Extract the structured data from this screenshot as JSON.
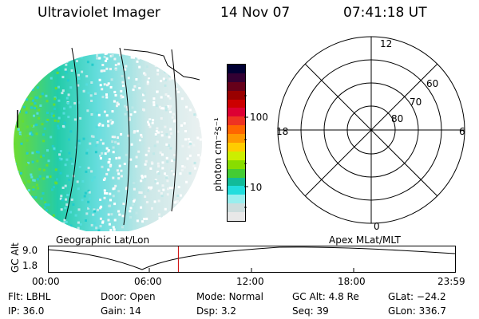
{
  "header": {
    "instrument": "Ultraviolet Imager",
    "date": "14 Nov 07",
    "time": "07:41:18 UT"
  },
  "colorbar": {
    "unit_label": "photon cm⁻²s⁻¹",
    "ticks": [
      "100",
      "10"
    ],
    "colors": [
      "#000033",
      "#330033",
      "#66001a",
      "#990000",
      "#cc0000",
      "#dd0033",
      "#ee3322",
      "#ff6600",
      "#ff9900",
      "#ffcc00",
      "#ccee00",
      "#88dd00",
      "#44cc33",
      "#11bb99",
      "#22dddd",
      "#99eeee",
      "#ccdddd",
      "#e8e8e8"
    ]
  },
  "polar_plot": {
    "mlt_labels": {
      "top": "12",
      "left": "18",
      "right": "6",
      "bottom": "0"
    },
    "lat_labels": [
      "60",
      "70",
      "80"
    ]
  },
  "timeline": {
    "left_title": "Geographic Lat/Lon",
    "right_title": "Apex MLat/MLT",
    "y_axis_label": "GC Alt",
    "y_ticks": [
      "9.0",
      "1.8"
    ],
    "x_ticks": [
      "00:00",
      "06:00",
      "12:00",
      "18:00",
      "23:59"
    ],
    "current_marker_hour": 7.69
  },
  "status": {
    "row1": [
      {
        "key": "Flt:",
        "value": "LBHL"
      },
      {
        "key": "Door:",
        "value": "Open"
      },
      {
        "key": "Mode:",
        "value": "Normal"
      },
      {
        "key": "GC Alt:",
        "value": "4.8 Re"
      },
      {
        "key": "GLat:",
        "value": "−24.2"
      }
    ],
    "row2": [
      {
        "key": "IP:",
        "value": "36.0"
      },
      {
        "key": "Gain:",
        "value": "14"
      },
      {
        "key": "Dsp:",
        "value": "3.2"
      },
      {
        "key": "Seq:",
        "value": "39"
      },
      {
        "key": "GLon:",
        "value": "336.7"
      }
    ]
  }
}
